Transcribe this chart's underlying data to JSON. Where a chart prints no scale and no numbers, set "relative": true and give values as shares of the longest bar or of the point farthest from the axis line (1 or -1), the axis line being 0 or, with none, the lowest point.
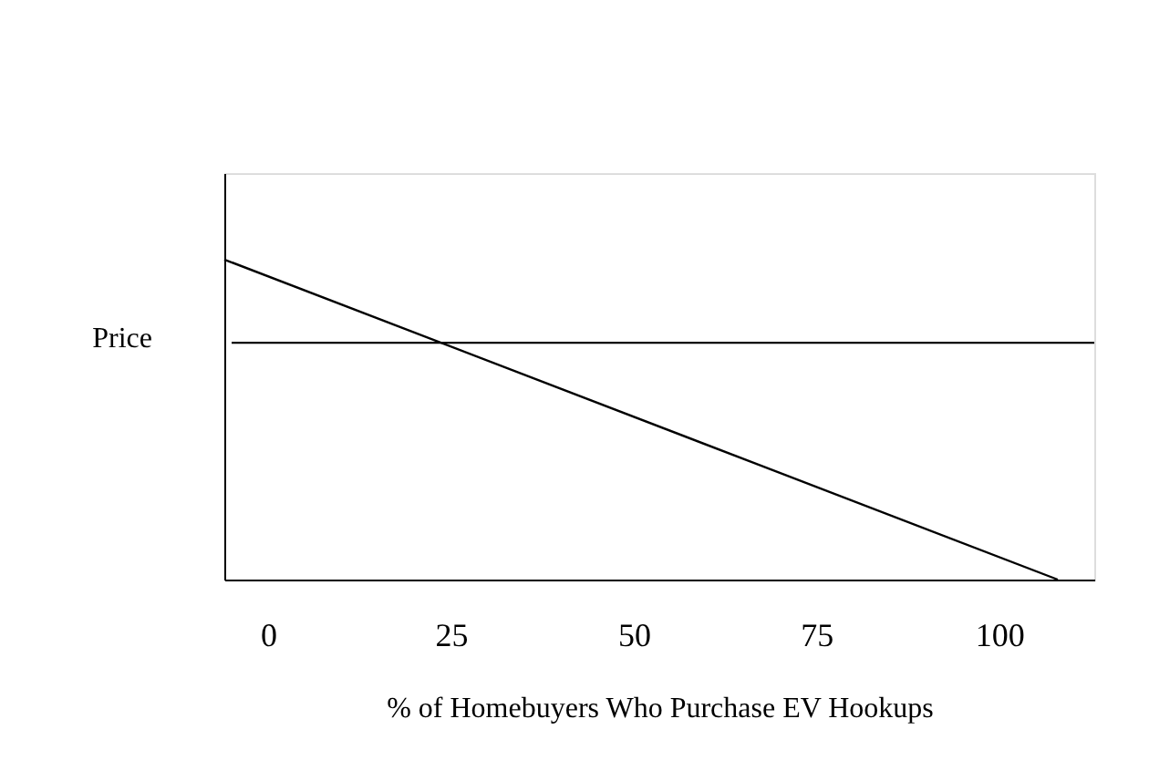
{
  "chart_data": {
    "type": "line",
    "relative": true,
    "xlabel": "% of Homebuyers Who Purchase EV Hookups",
    "ylabel": "Price",
    "xlim": [
      -6,
      113
    ],
    "xticks": [
      0,
      25,
      50,
      75,
      100
    ],
    "grid": false,
    "legend": false,
    "marker": "none",
    "line_style": "solid",
    "series": [
      {
        "color": "#000000",
        "x": [
          -6,
          108
        ],
        "values": [
          1,
          0
        ]
      },
      {
        "color": "#000000",
        "x": [
          -5,
          113
        ],
        "values": [
          0.74,
          0.74
        ]
      }
    ]
  }
}
